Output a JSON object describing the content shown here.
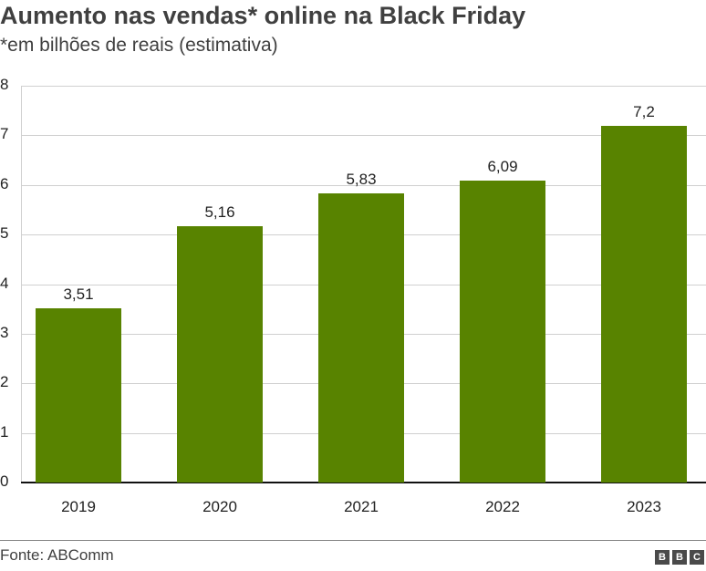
{
  "header": {
    "title": "Aumento nas vendas* online na Black Friday",
    "subtitle": "*em bilhões de reais (estimativa)"
  },
  "footer": {
    "source": "Fonte: ABComm",
    "logo": [
      "B",
      "B",
      "C"
    ]
  },
  "colors": {
    "bar": "#588300",
    "grid": "#d0d0d0",
    "text": "#404040"
  },
  "chart_data": {
    "type": "bar",
    "title": "Aumento nas vendas* online na Black Friday",
    "subtitle": "*em bilhões de reais (estimativa)",
    "xlabel": "",
    "ylabel": "",
    "categories": [
      "2019",
      "2020",
      "2021",
      "2022",
      "2023"
    ],
    "values": [
      3.51,
      5.16,
      5.83,
      6.09,
      7.2
    ],
    "value_labels": [
      "3,51",
      "5,16",
      "5,83",
      "6,09",
      "7,2"
    ],
    "ylim": [
      0,
      8
    ],
    "yticks": [
      "0",
      "1",
      "2",
      "3",
      "4",
      "5",
      "6",
      "7",
      "8"
    ],
    "grid": true,
    "legend": null,
    "source": "Fonte: ABComm"
  }
}
